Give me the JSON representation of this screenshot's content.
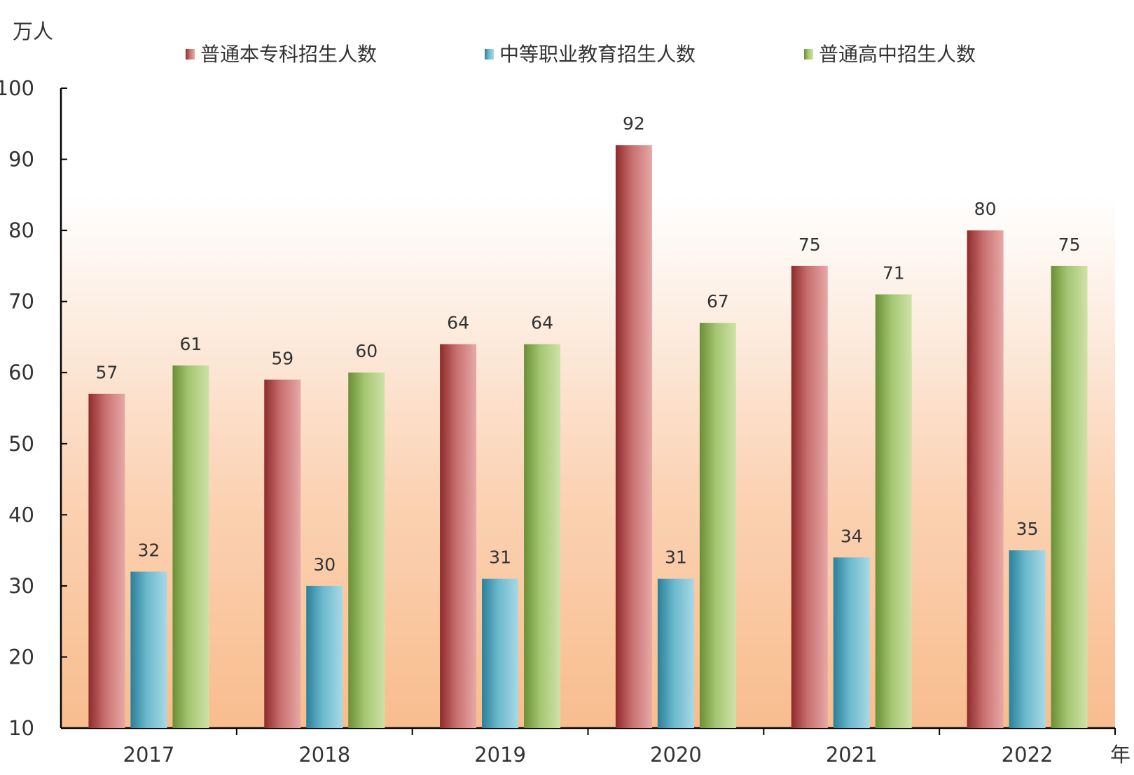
{
  "chart_data": {
    "type": "bar",
    "title": "",
    "ylabel": "万人",
    "xlabel": "年",
    "ylim": [
      10,
      100
    ],
    "yticks": [
      10,
      20,
      30,
      40,
      50,
      60,
      70,
      80,
      90,
      100
    ],
    "categories": [
      "2017",
      "2018",
      "2019",
      "2020",
      "2021",
      "2022"
    ],
    "series": [
      {
        "name": "普通本专科招生人数",
        "values": [
          57,
          59,
          64,
          92,
          75,
          80
        ],
        "labels": [
          "57",
          "59",
          "64",
          "92",
          "75",
          "80"
        ],
        "color": "#b8544f"
      },
      {
        "name": "中等职业教育招生人数",
        "values": [
          32,
          30,
          31,
          31,
          34,
          35
        ],
        "labels": [
          "32",
          "30",
          "31",
          "31",
          "34",
          "35"
        ],
        "color": "#4aa3bb"
      },
      {
        "name": "普通高中招生人数",
        "values": [
          61,
          60,
          64,
          67,
          71,
          75
        ],
        "labels": [
          "61",
          "60",
          "64",
          "67",
          "71",
          "75"
        ],
        "color": "#8db35a"
      }
    ],
    "legend_position": "top",
    "grid": false,
    "background": "gradient-peach"
  }
}
